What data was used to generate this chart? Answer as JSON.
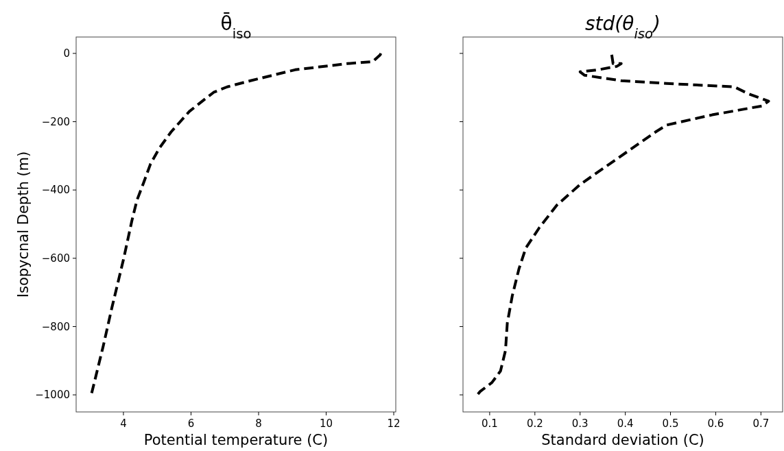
{
  "chart_data": [
    {
      "type": "line",
      "title": "θ̄$_{iso}$",
      "xlabel": "Potential temperature (C)",
      "ylabel": "Isopycnal Depth (m)",
      "xlim": [
        2.6,
        12.06
      ],
      "xticks": [
        4,
        6,
        8,
        10,
        12
      ],
      "ylim": [
        -1050,
        48
      ],
      "yticks": [
        -1000,
        -800,
        -600,
        -400,
        -200,
        0
      ],
      "line_style": "dashed",
      "series": [
        {
          "color": "#000000",
          "x": [
            11.62,
            11.6,
            11.38,
            10.63,
            9.08,
            8.42,
            7.76,
            7.07,
            6.67,
            6.41,
            5.95,
            5.41,
            5.06,
            4.8,
            4.6,
            4.4,
            4.25,
            4.0,
            3.66,
            3.4,
            3.06
          ],
          "values": [
            0,
            -4,
            -24,
            -30,
            -48,
            -64,
            -80,
            -98,
            -114,
            -134,
            -170,
            -230,
            -278,
            -324,
            -378,
            -430,
            -490,
            -604,
            -744,
            -858,
            -995
          ]
        }
      ]
    },
    {
      "type": "line",
      "title": "std(θ$_{iso}$)",
      "xlabel": "Standard deviation (C)",
      "xlim": [
        0.041,
        0.748
      ],
      "xticks": [
        0.1,
        0.2,
        0.3,
        0.4,
        0.5,
        0.6,
        0.7
      ],
      "ylim": [
        -1050,
        48
      ],
      "yticks": [
        {
          "value": -1000,
          "label": null
        },
        {
          "value": -800,
          "label": null
        },
        {
          "value": -600,
          "label": null
        },
        {
          "value": -400,
          "label": null
        },
        {
          "value": -200,
          "label": null
        },
        {
          "value": 0,
          "label": null
        }
      ],
      "tick_labels": "x",
      "line_style": "dashed",
      "series": [
        {
          "color": "#000000",
          "x": [
            0.37,
            0.373,
            0.391,
            0.381,
            0.34,
            0.3,
            0.31,
            0.391,
            0.491,
            0.641,
            0.672,
            0.717,
            0.702,
            0.592,
            0.491,
            0.467,
            0.415,
            0.365,
            0.3,
            0.249,
            0.21,
            0.18,
            0.165,
            0.15,
            0.139,
            0.135,
            0.124,
            0.105,
            0.079,
            0.074
          ],
          "values": [
            -4,
            -30,
            -30,
            -38,
            -48,
            -54,
            -64,
            -80,
            -88,
            -98,
            -118,
            -140,
            -154,
            -180,
            -210,
            -230,
            -278,
            -324,
            -384,
            -444,
            -510,
            -570,
            -630,
            -710,
            -790,
            -870,
            -930,
            -964,
            -990,
            -998
          ]
        }
      ]
    }
  ]
}
